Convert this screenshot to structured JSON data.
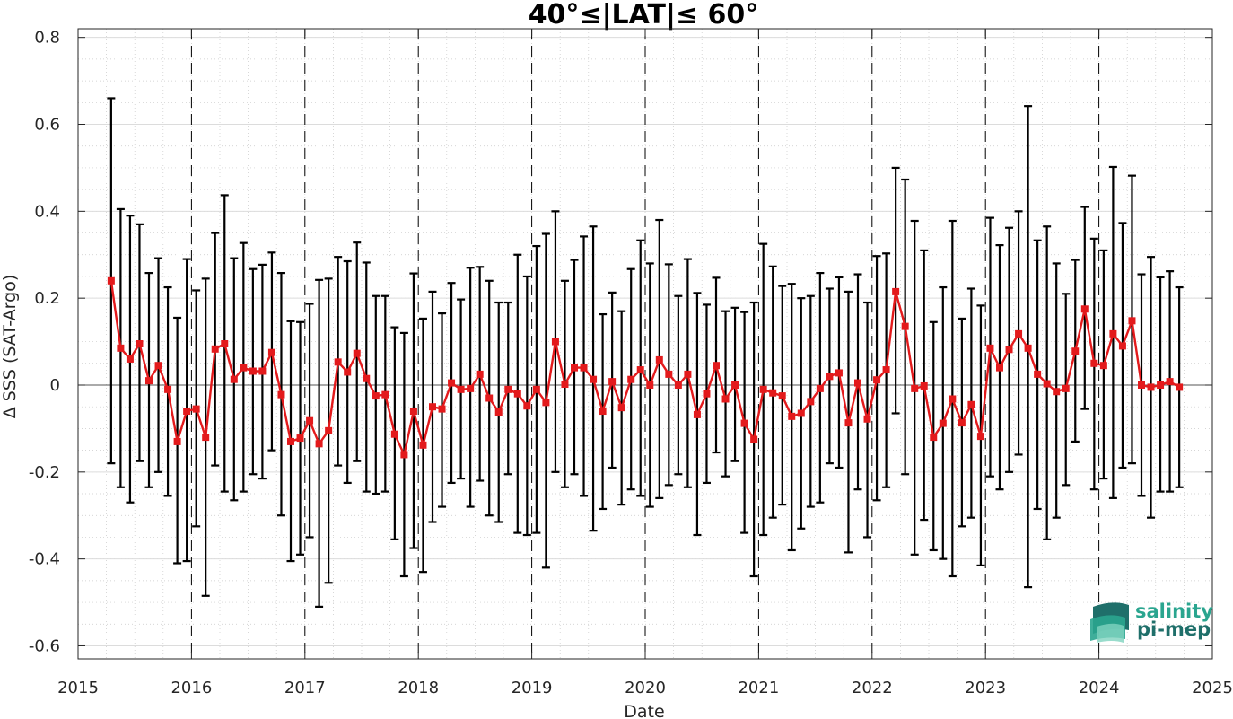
{
  "chart_data": {
    "type": "line",
    "title": "40°≤|LAT|≤ 60°",
    "xlabel": "Date",
    "ylabel": "Δ SSS (SAT-Argo)",
    "xlim": [
      2015,
      2025
    ],
    "ylim": [
      -0.63,
      0.82
    ],
    "xticks": [
      "2015",
      "2016",
      "2017",
      "2018",
      "2019",
      "2020",
      "2021",
      "2022",
      "2023",
      "2024",
      "2025"
    ],
    "yticks": [
      "-0.6",
      "-0.4",
      "-0.2",
      "0",
      "0.2",
      "0.4",
      "0.6",
      "0.8"
    ],
    "grid": true,
    "year_boundary_lines": "dashed",
    "series": [
      {
        "color": "#e31a1c",
        "marker": "square",
        "errorbar_color": "#000000",
        "x": [
          "2015-04",
          "2015-05",
          "2015-06",
          "2015-07",
          "2015-08",
          "2015-09",
          "2015-10",
          "2015-11",
          "2015-12",
          "2016-01",
          "2016-02",
          "2016-03",
          "2016-04",
          "2016-05",
          "2016-06",
          "2016-07",
          "2016-08",
          "2016-09",
          "2016-10",
          "2016-11",
          "2016-12",
          "2017-01",
          "2017-02",
          "2017-03",
          "2017-04",
          "2017-05",
          "2017-06",
          "2017-07",
          "2017-08",
          "2017-09",
          "2017-10",
          "2017-11",
          "2017-12",
          "2018-01",
          "2018-02",
          "2018-03",
          "2018-04",
          "2018-05",
          "2018-06",
          "2018-07",
          "2018-08",
          "2018-09",
          "2018-10",
          "2018-11",
          "2018-12",
          "2019-01",
          "2019-02",
          "2019-03",
          "2019-04",
          "2019-05",
          "2019-06",
          "2019-07",
          "2019-08",
          "2019-09",
          "2019-10",
          "2019-11",
          "2019-12",
          "2020-01",
          "2020-02",
          "2020-03",
          "2020-04",
          "2020-05",
          "2020-06",
          "2020-07",
          "2020-08",
          "2020-09",
          "2020-10",
          "2020-11",
          "2020-12",
          "2021-01",
          "2021-02",
          "2021-03",
          "2021-04",
          "2021-05",
          "2021-06",
          "2021-07",
          "2021-08",
          "2021-09",
          "2021-10",
          "2021-11",
          "2021-12",
          "2022-01",
          "2022-02",
          "2022-03",
          "2022-04",
          "2022-05",
          "2022-06",
          "2022-07",
          "2022-08",
          "2022-09",
          "2022-10",
          "2022-11",
          "2022-12",
          "2023-01",
          "2023-02",
          "2023-03",
          "2023-04",
          "2023-05",
          "2023-06",
          "2023-07",
          "2023-08",
          "2023-09",
          "2023-10",
          "2023-11",
          "2023-12",
          "2024-01",
          "2024-02",
          "2024-03",
          "2024-04",
          "2024-05",
          "2024-06",
          "2024-07",
          "2024-08",
          "2024-09"
        ],
        "y": [
          0.24,
          0.085,
          0.06,
          0.095,
          0.01,
          0.045,
          -0.01,
          -0.13,
          -0.06,
          -0.055,
          -0.12,
          0.083,
          0.095,
          0.013,
          0.04,
          0.032,
          0.032,
          0.075,
          -0.022,
          -0.13,
          -0.122,
          -0.082,
          -0.135,
          -0.105,
          0.053,
          0.03,
          0.073,
          0.015,
          -0.025,
          -0.022,
          -0.113,
          -0.16,
          -0.06,
          -0.138,
          -0.05,
          -0.055,
          0.005,
          -0.01,
          -0.008,
          0.025,
          -0.03,
          -0.062,
          -0.01,
          -0.02,
          -0.048,
          -0.01,
          -0.04,
          0.1,
          0.002,
          0.04,
          0.04,
          0.013,
          -0.06,
          0.008,
          -0.052,
          0.013,
          0.035,
          0.0,
          0.058,
          0.025,
          0.0,
          0.025,
          -0.068,
          -0.02,
          0.045,
          -0.032,
          0.0,
          -0.088,
          -0.125,
          -0.01,
          -0.018,
          -0.025,
          -0.072,
          -0.065,
          -0.038,
          -0.008,
          0.02,
          0.028,
          -0.087,
          0.005,
          -0.078,
          0.012,
          0.035,
          0.215,
          0.135,
          -0.008,
          -0.002,
          -0.12,
          -0.088,
          -0.032,
          -0.087,
          -0.045,
          -0.118,
          0.085,
          0.04,
          0.082,
          0.118,
          0.085,
          0.025,
          0.003,
          -0.015,
          -0.008,
          0.078,
          0.175,
          0.05,
          0.045,
          0.118,
          0.09,
          0.148,
          0.0,
          -0.005,
          0.0,
          0.008,
          -0.005
        ],
        "err_low": [
          -0.18,
          -0.235,
          -0.27,
          -0.175,
          -0.235,
          -0.2,
          -0.255,
          -0.41,
          -0.405,
          -0.325,
          -0.485,
          -0.185,
          -0.245,
          -0.265,
          -0.245,
          -0.205,
          -0.215,
          -0.15,
          -0.3,
          -0.405,
          -0.39,
          -0.35,
          -0.51,
          -0.455,
          -0.185,
          -0.225,
          -0.175,
          -0.245,
          -0.25,
          -0.245,
          -0.355,
          -0.44,
          -0.375,
          -0.43,
          -0.315,
          -0.28,
          -0.225,
          -0.215,
          -0.28,
          -0.22,
          -0.3,
          -0.315,
          -0.205,
          -0.34,
          -0.345,
          -0.34,
          -0.42,
          -0.2,
          -0.235,
          -0.205,
          -0.255,
          -0.335,
          -0.285,
          -0.19,
          -0.275,
          -0.24,
          -0.255,
          -0.28,
          -0.26,
          -0.23,
          -0.205,
          -0.235,
          -0.345,
          -0.225,
          -0.155,
          -0.21,
          -0.175,
          -0.34,
          -0.44,
          -0.345,
          -0.305,
          -0.275,
          -0.38,
          -0.33,
          -0.28,
          -0.27,
          -0.18,
          -0.19,
          -0.385,
          -0.24,
          -0.35,
          -0.265,
          -0.235,
          -0.065,
          -0.205,
          -0.39,
          -0.31,
          -0.38,
          -0.4,
          -0.44,
          -0.325,
          -0.305,
          -0.415,
          -0.21,
          -0.24,
          -0.2,
          -0.16,
          -0.465,
          -0.285,
          -0.355,
          -0.305,
          -0.23,
          -0.13,
          -0.055,
          -0.24,
          -0.215,
          -0.26,
          -0.19,
          -0.18,
          -0.255,
          -0.305,
          -0.245,
          -0.245,
          -0.235
        ],
        "err_high": [
          0.66,
          0.405,
          0.39,
          0.37,
          0.258,
          0.292,
          0.225,
          0.155,
          0.29,
          0.218,
          0.245,
          0.35,
          0.437,
          0.292,
          0.327,
          0.267,
          0.277,
          0.305,
          0.258,
          0.147,
          0.145,
          0.187,
          0.242,
          0.245,
          0.295,
          0.285,
          0.328,
          0.282,
          0.205,
          0.205,
          0.133,
          0.12,
          0.257,
          0.153,
          0.215,
          0.165,
          0.235,
          0.197,
          0.27,
          0.272,
          0.24,
          0.19,
          0.19,
          0.3,
          0.25,
          0.32,
          0.348,
          0.4,
          0.24,
          0.288,
          0.342,
          0.365,
          0.163,
          0.213,
          0.17,
          0.267,
          0.333,
          0.28,
          0.38,
          0.278,
          0.205,
          0.29,
          0.212,
          0.185,
          0.247,
          0.17,
          0.178,
          0.168,
          0.19,
          0.325,
          0.273,
          0.228,
          0.233,
          0.2,
          0.205,
          0.258,
          0.222,
          0.248,
          0.215,
          0.255,
          0.19,
          0.297,
          0.303,
          0.5,
          0.473,
          0.378,
          0.31,
          0.145,
          0.225,
          0.378,
          0.153,
          0.222,
          0.183,
          0.385,
          0.322,
          0.362,
          0.4,
          0.642,
          0.333,
          0.365,
          0.28,
          0.21,
          0.288,
          0.41,
          0.337,
          0.31,
          0.502,
          0.373,
          0.482,
          0.255,
          0.295,
          0.248,
          0.262,
          0.225
        ]
      }
    ]
  },
  "watermark": {
    "line1": "salinity",
    "line2": "pi-mep"
  }
}
